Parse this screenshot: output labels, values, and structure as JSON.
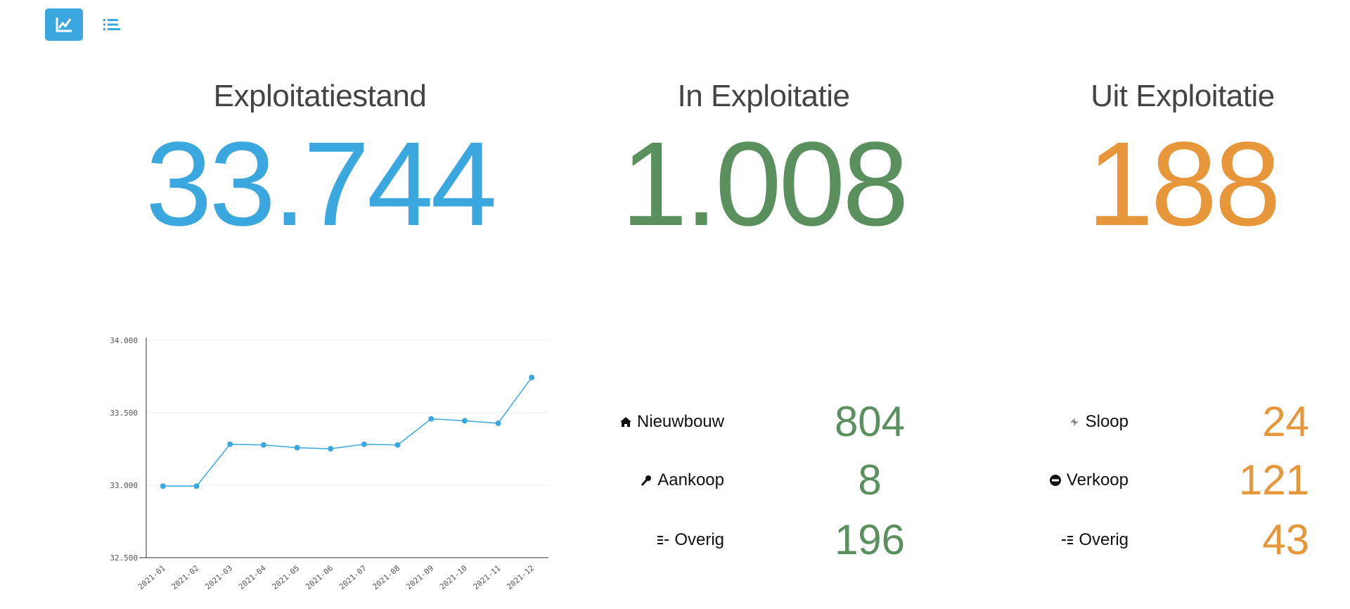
{
  "toolbar": {
    "buttons": [
      {
        "icon": "line-chart-icon",
        "active": true
      },
      {
        "icon": "list-icon",
        "active": false
      }
    ]
  },
  "kpis": [
    {
      "title": "Exploitatiestand",
      "value": "33.744",
      "color": "#3aa8df"
    },
    {
      "title": "In Exploitatie",
      "value": "1.008",
      "color": "#5a8f5e"
    },
    {
      "title": "Uit Exploitatie",
      "value": "188",
      "color": "#e8963a"
    }
  ],
  "in_stats": [
    {
      "icon": "home-icon",
      "label": "Nieuwbouw",
      "value": "804"
    },
    {
      "icon": "key-icon",
      "label": "Aankoop",
      "value": "8"
    },
    {
      "icon": "list-in-icon",
      "label": "Overig",
      "value": "196"
    }
  ],
  "out_stats": [
    {
      "icon": "demolish-icon",
      "label": "Sloop",
      "value": "24"
    },
    {
      "icon": "minus-circle-icon",
      "label": "Verkoop",
      "value": "121"
    },
    {
      "icon": "list-out-icon",
      "label": "Overig",
      "value": "43"
    }
  ],
  "chart_data": {
    "type": "line",
    "categories": [
      "2021-01",
      "2021-02",
      "2021-03",
      "2021-04",
      "2021-05",
      "2021-06",
      "2021-07",
      "2021-08",
      "2021-09",
      "2021-10",
      "2021-11",
      "2021-12"
    ],
    "values": [
      32994,
      32994,
      33283,
      33278,
      33259,
      33252,
      33283,
      33278,
      33458,
      33445,
      33428,
      33744
    ],
    "yticks": [
      "32.500",
      "33.000",
      "33.500",
      "34.000"
    ],
    "ylim": [
      32500,
      34000
    ],
    "grid": true,
    "color": "#3aa8df"
  }
}
